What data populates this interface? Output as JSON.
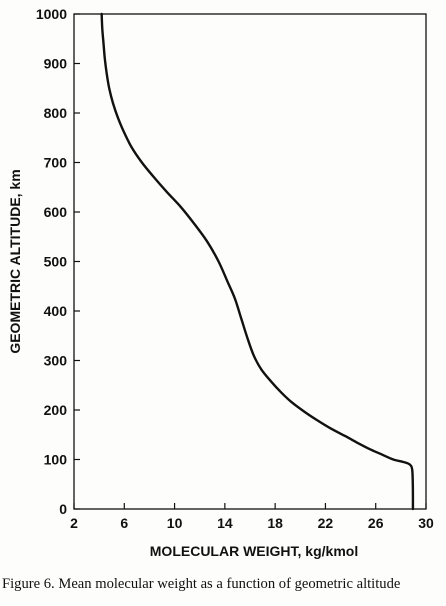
{
  "caption": "Figure 6.  Mean molecular weight as a function of geometric altitude",
  "chart_data": {
    "type": "line",
    "title": "",
    "xlabel": "MOLECULAR WEIGHT, kg/kmol",
    "ylabel": "GEOMETRIC ALTITUDE, km",
    "xlim": [
      2,
      30
    ],
    "ylim": [
      0,
      1000
    ],
    "x_ticks": [
      2,
      6,
      10,
      14,
      18,
      22,
      26,
      30
    ],
    "y_ticks": [
      0,
      100,
      200,
      300,
      400,
      500,
      600,
      700,
      800,
      900,
      1000
    ],
    "grid": false,
    "series": [
      {
        "name": "",
        "x": [
          28.96,
          28.96,
          28.95,
          28.9,
          28.7,
          28.2,
          27.4,
          26.5,
          25.6,
          24.6,
          23.6,
          22.4,
          21.3,
          20.3,
          19.3,
          18.5,
          17.7,
          16.9,
          16.3,
          15.8,
          15.3,
          14.8,
          14.2,
          13.5,
          12.6,
          11.6,
          10.5,
          9.4,
          8.3,
          7.4,
          6.6,
          6.0,
          5.5,
          5.1,
          4.8,
          4.6,
          4.45,
          4.35,
          4.25,
          4.2
        ],
        "y": [
          0,
          20,
          50,
          80,
          90,
          95,
          100,
          110,
          120,
          133,
          147,
          163,
          180,
          197,
          216,
          235,
          257,
          282,
          310,
          345,
          385,
          425,
          460,
          500,
          540,
          575,
          610,
          640,
          672,
          700,
          730,
          760,
          790,
          820,
          850,
          880,
          910,
          940,
          970,
          1000
        ],
        "color": "#111111"
      }
    ]
  }
}
